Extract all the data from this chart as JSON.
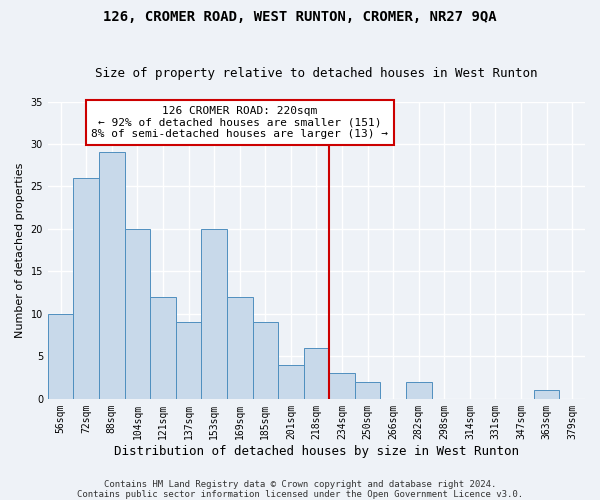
{
  "title1": "126, CROMER ROAD, WEST RUNTON, CROMER, NR27 9QA",
  "title2": "Size of property relative to detached houses in West Runton",
  "xlabel": "Distribution of detached houses by size in West Runton",
  "ylabel": "Number of detached properties",
  "categories": [
    "56sqm",
    "72sqm",
    "88sqm",
    "104sqm",
    "121sqm",
    "137sqm",
    "153sqm",
    "169sqm",
    "185sqm",
    "201sqm",
    "218sqm",
    "234sqm",
    "250sqm",
    "266sqm",
    "282sqm",
    "298sqm",
    "314sqm",
    "331sqm",
    "347sqm",
    "363sqm",
    "379sqm"
  ],
  "values": [
    10,
    26,
    29,
    20,
    12,
    9,
    20,
    12,
    9,
    4,
    6,
    3,
    2,
    0,
    2,
    0,
    0,
    0,
    0,
    1,
    0
  ],
  "bar_color": "#c8d9ea",
  "bar_edge_color": "#4f8fbf",
  "vline_x_index": 10,
  "vline_color": "#cc0000",
  "annotation_text": "126 CROMER ROAD: 220sqm\n← 92% of detached houses are smaller (151)\n8% of semi-detached houses are larger (13) →",
  "annotation_box_color": "#ffffff",
  "annotation_box_edge": "#cc0000",
  "ylim": [
    0,
    35
  ],
  "yticks": [
    0,
    5,
    10,
    15,
    20,
    25,
    30,
    35
  ],
  "footer1": "Contains HM Land Registry data © Crown copyright and database right 2024.",
  "footer2": "Contains public sector information licensed under the Open Government Licence v3.0.",
  "bg_color": "#eef2f7",
  "grid_color": "#ffffff",
  "title_fontsize": 10,
  "subtitle_fontsize": 9,
  "xlabel_fontsize": 9,
  "ylabel_fontsize": 8,
  "tick_fontsize": 7,
  "annotation_fontsize": 8,
  "footer_fontsize": 6.5
}
